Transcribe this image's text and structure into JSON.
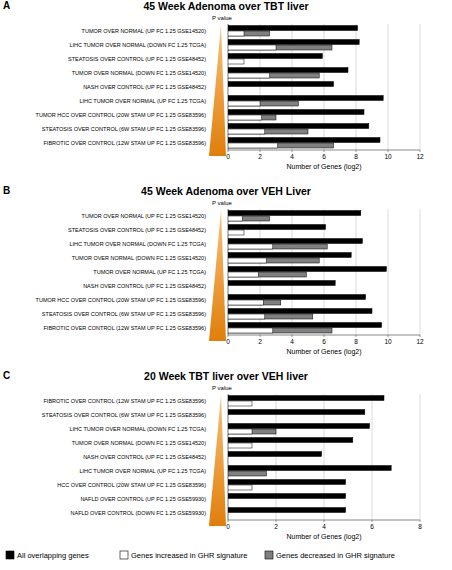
{
  "chart_data": [
    {
      "type": "bar",
      "orientation": "horizontal",
      "title": "45 Week Adenoma over TBT liver",
      "annotations": [
        "A",
        "P value"
      ],
      "x_label": "Number of Genes (log2)",
      "categories": [
        "TUMOR OVER NORMAL (UP FC 1.25 GSE14520)",
        "LIHC TUMOR OVER NORMAL (DOWN FC 1.25 TCGA)",
        "STEATOSIS OVER CONTROL (UP FC 1.25 GSE48452)",
        "TUMOR OVER NORMAL (DOWN FC 1.25 GSE14520)",
        "NASH OVER CONTROL (UP FC 1.25 GSE48452)",
        "LIHC TUMOR OVER NORMAL (UP FC 1.25 TCGA)",
        "TUMOR HCC OVER CONTROL (20W STAM UP FC 1.25 GSE83596)",
        "STEATOSIS OVER CONTROL (6W STAM UP FC 1.25 GSE83596)",
        "FIBROTIC OVER CONTROL (12W STAM UP FC 1.25 GSE83596)"
      ],
      "series": [
        {
          "name": "All overlapping genes",
          "color": "#000000",
          "values": [
            8.1,
            8.2,
            5.9,
            7.5,
            6.6,
            9.7,
            8.5,
            8.8,
            9.5
          ]
        },
        {
          "name": "Genes increased in GHR signature",
          "color": "#ffffff",
          "values": [
            1.0,
            3.0,
            1.0,
            2.6,
            null,
            2.0,
            2.1,
            2.3,
            3.1
          ]
        },
        {
          "name": "Genes decreased in GHR signature",
          "color": "#808080",
          "values": [
            2.6,
            6.5,
            null,
            5.7,
            null,
            4.4,
            3.0,
            5.0,
            6.6
          ]
        }
      ],
      "xlim": [
        0,
        12
      ],
      "xticks": [
        0,
        2,
        4,
        6,
        8,
        10,
        12
      ],
      "grid": true
    },
    {
      "type": "bar",
      "orientation": "horizontal",
      "title": "45 Week Adenoma over VEH Liver",
      "annotations": [
        "B",
        "P value"
      ],
      "x_label": "Number of Genes (log2)",
      "categories": [
        "TUMOR OVER NORMAL (UP FC 1.25 GSE14520)",
        "STEATOSIS OVER CONTROL (UP FC 1.25 GSE48452)",
        "LIHC TUMOR OVER NORMAL (DOWN FC 1.25 TCGA)",
        "TUMOR OVER NORMAL (DOWN FC 1.25 GSE14520)",
        "TUMOR OVER NORMAL (UP FC 1.25 TCGA)",
        "NASH OVER CONTROL (UP FC 1.25 GSE48452)",
        "TUMOR HCC OVER CONTROL (20W STAM UP FC 1.25 GSE83596)",
        "STEATOSIS OVER CONTROL (6W STAM UP FC 1.25 GSE83596)",
        "FIBROTIC OVER CONTROL (12W STAM UP FC 1.25 GSE83596)"
      ],
      "series": [
        {
          "name": "All overlapping genes",
          "color": "#000000",
          "values": [
            8.3,
            6.1,
            8.4,
            7.7,
            9.9,
            6.7,
            8.6,
            9.0,
            9.6
          ]
        },
        {
          "name": "Genes increased in GHR signature",
          "color": "#ffffff",
          "values": [
            0.9,
            1.0,
            2.8,
            2.4,
            1.9,
            null,
            2.2,
            2.3,
            2.8
          ]
        },
        {
          "name": "Genes decreased in GHR signature",
          "color": "#808080",
          "values": [
            2.6,
            null,
            6.2,
            5.7,
            4.9,
            null,
            3.3,
            5.3,
            6.5
          ]
        }
      ],
      "xlim": [
        0,
        12
      ],
      "xticks": [
        0,
        2,
        4,
        6,
        8,
        10,
        12
      ],
      "grid": true
    },
    {
      "type": "bar",
      "orientation": "horizontal",
      "title": "20 Week TBT liver over VEH liver",
      "annotations": [
        "C",
        "P value"
      ],
      "x_label": "Number of Genes (log2)",
      "categories": [
        "FIBROTIC OVER CONTROL (12W STAM UP FC 1.25 GSE83596)",
        "STEATOSIS OVER CONTROL (6W STAM UP FC 1.25 GSE83596)",
        "LIHC TUMOR OVER NORMAL (DOWN FC 1.25 TCGA)",
        "TUMOR OVER NORMAL (DOWN FC 1.25 GSE14520)",
        "NASH OVER CONTROL (UP FC 1.25 GSE48452)",
        "LIHC TUMOR OVER NORMAL (UP FC 1.25 TCGA)",
        "HCC OVER CONTROL (20W STAM UP FC 1.25 GSE83596)",
        "NAFLD OVER CONTROL (UP FC 1.25 GSE59930)",
        "NAFLD OVER CONTROL (DOWN FC 1.25 GSE59930)"
      ],
      "series": [
        {
          "name": "All overlapping genes",
          "color": "#000000",
          "values": [
            6.5,
            5.7,
            5.9,
            5.2,
            3.9,
            6.8,
            4.9,
            4.9,
            4.9
          ]
        },
        {
          "name": "Genes increased in GHR signature",
          "color": "#ffffff",
          "values": [
            1.0,
            null,
            1.0,
            1.0,
            null,
            null,
            1.0,
            null,
            null
          ]
        },
        {
          "name": "Genes decreased in GHR signature",
          "color": "#808080",
          "values": [
            null,
            null,
            2.0,
            null,
            null,
            1.6,
            null,
            null,
            null
          ]
        }
      ],
      "xlim": [
        0,
        8
      ],
      "xticks": [
        0,
        2,
        4,
        6,
        8
      ],
      "grid": true,
      "legend": "bottom"
    }
  ]
}
